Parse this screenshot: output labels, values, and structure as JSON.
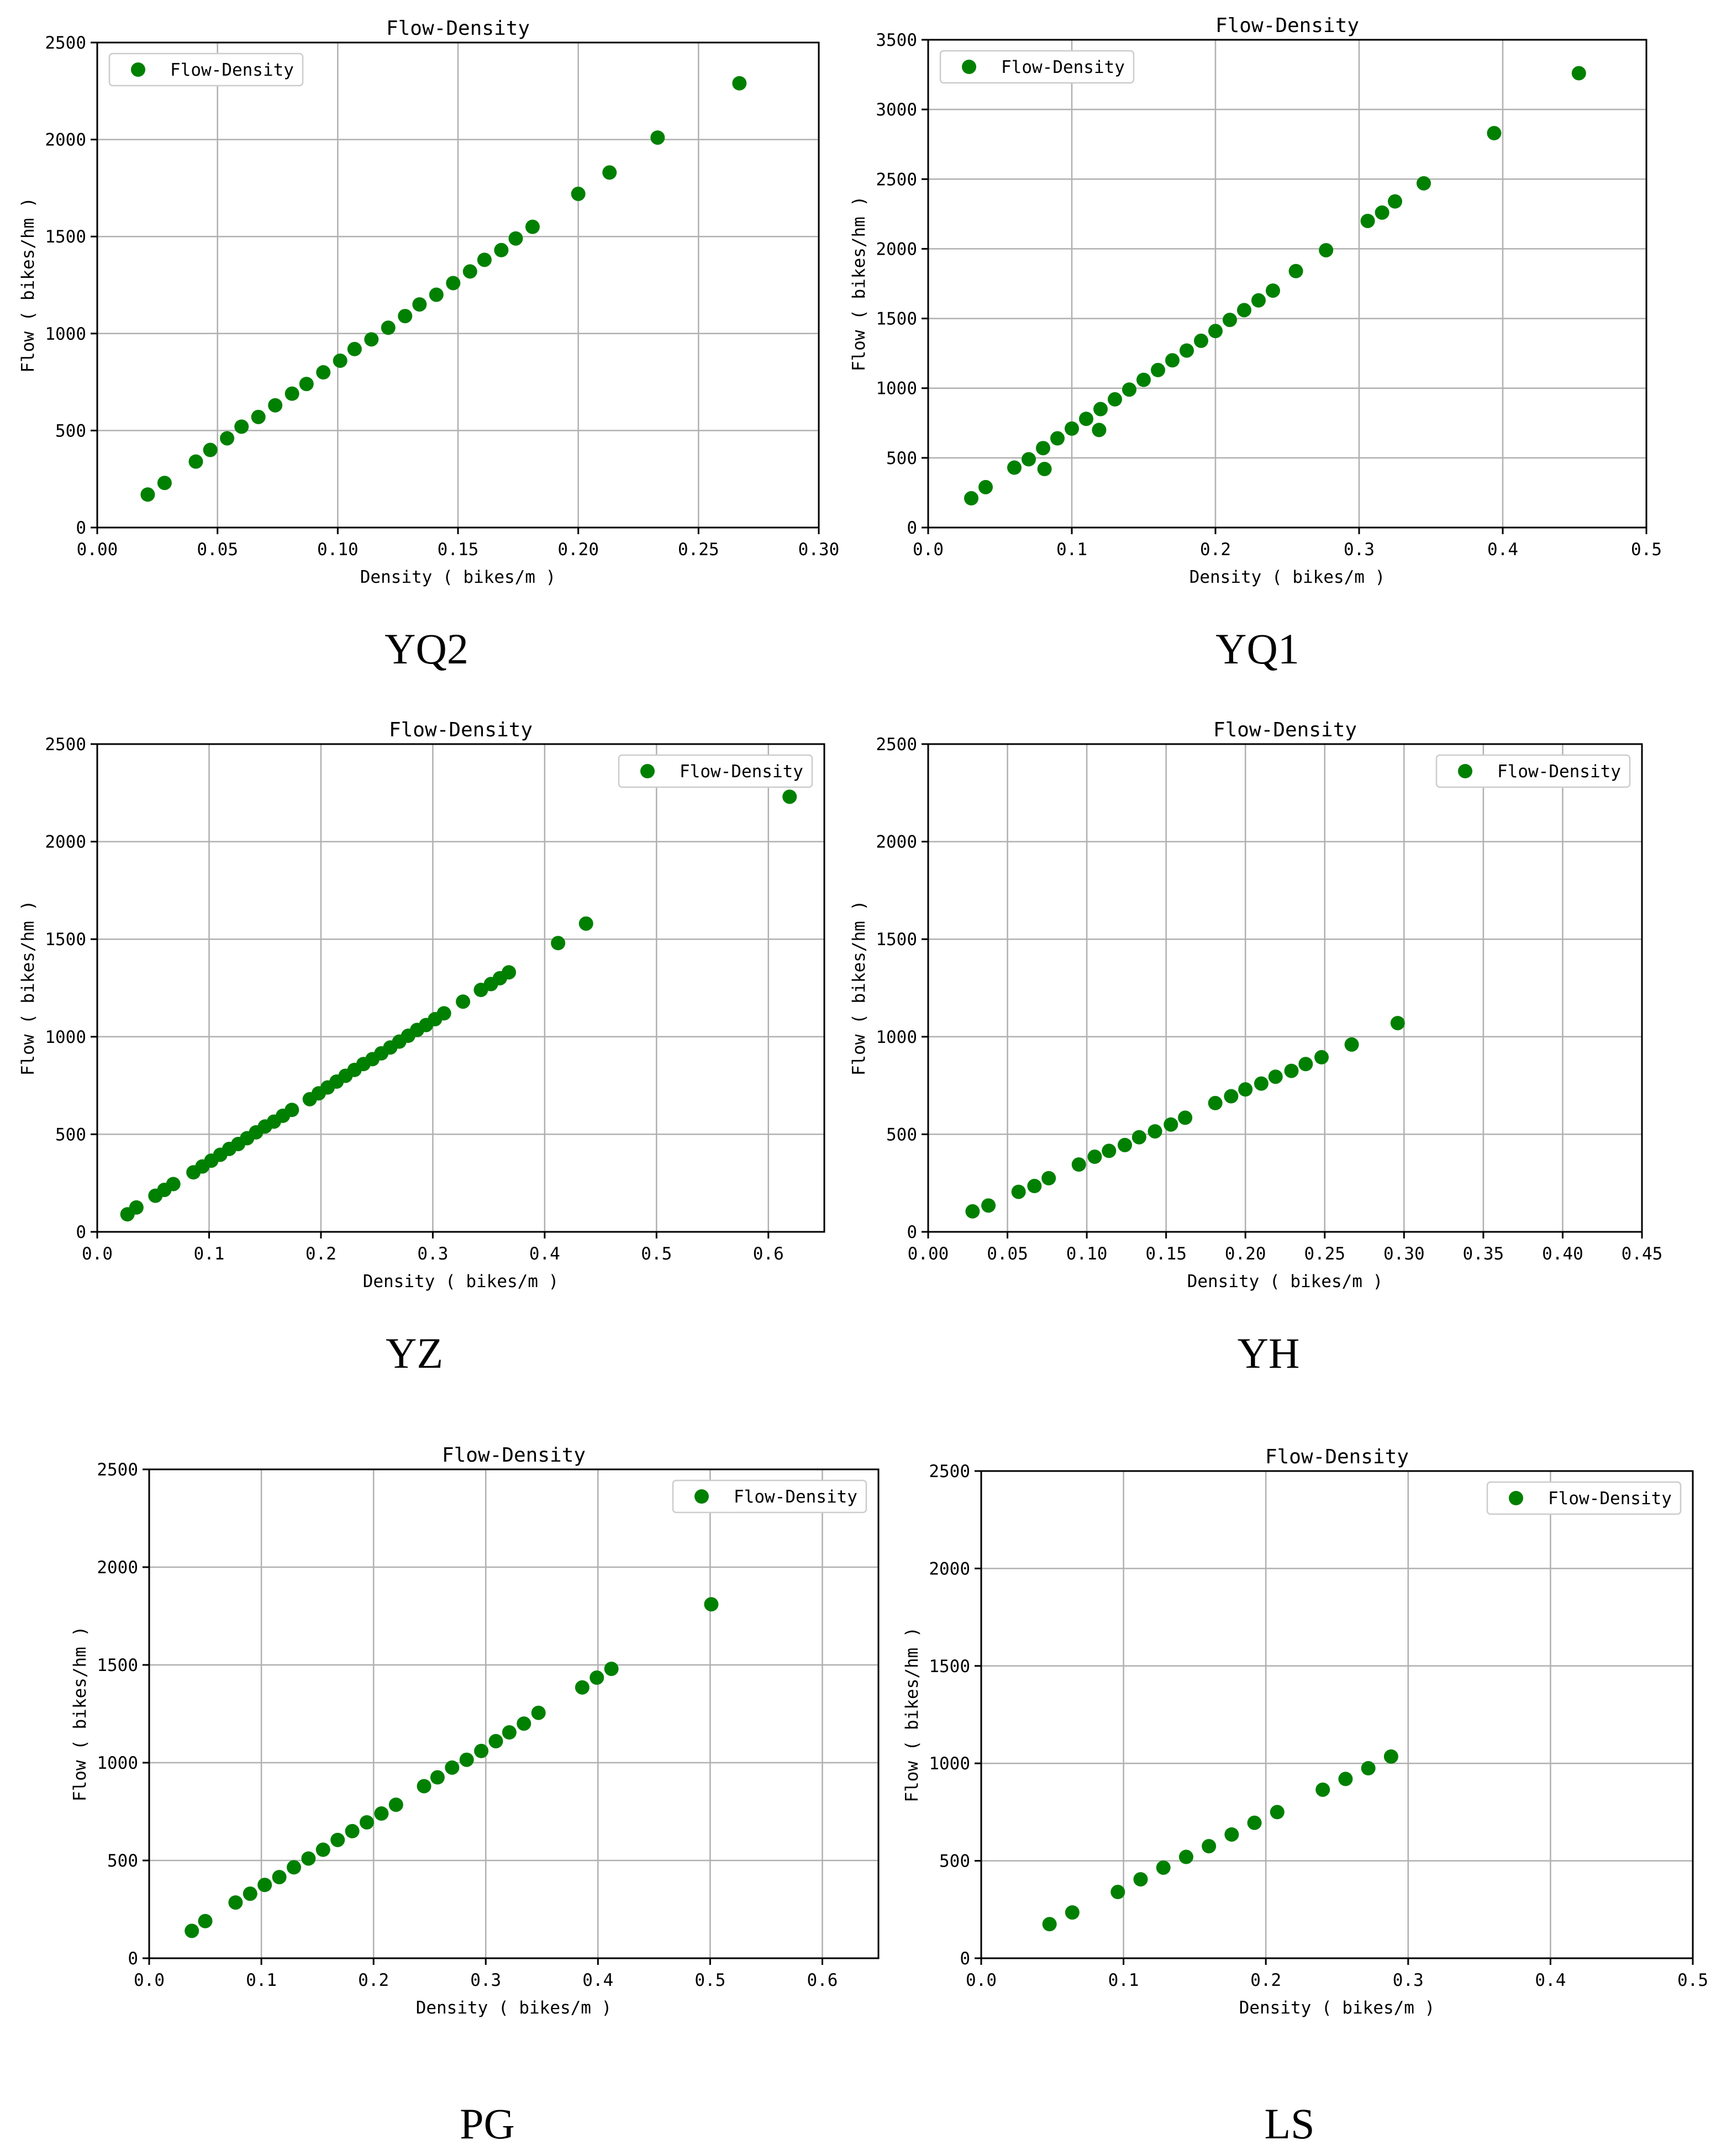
{
  "colors": {
    "marker": "#008000",
    "grid": "#b0b0b0",
    "axis": "#000000"
  },
  "chart_data": [
    {
      "type": "scatter",
      "caption": "YQ2",
      "title": "Flow-Density",
      "xlabel": "Density ( bikes/m )",
      "ylabel": "Flow ( bikes/hm )",
      "xlim": [
        0,
        0.3
      ],
      "ylim": [
        0,
        2500
      ],
      "xticks": [
        0,
        0.05,
        0.1,
        0.15,
        0.2,
        0.25,
        0.3
      ],
      "xtick_labels": [
        "0.00",
        "0.05",
        "0.10",
        "0.15",
        "0.20",
        "0.25",
        "0.30"
      ],
      "yticks": [
        0,
        500,
        1000,
        1500,
        2000,
        2500
      ],
      "ytick_labels": [
        "0",
        "500",
        "1000",
        "1500",
        "2000",
        "2500"
      ],
      "grid": true,
      "legend_position": "upper-left",
      "series": [
        {
          "name": "Flow-Density",
          "x": [
            0.021,
            0.028,
            0.041,
            0.047,
            0.054,
            0.06,
            0.067,
            0.074,
            0.081,
            0.087,
            0.094,
            0.101,
            0.107,
            0.114,
            0.121,
            0.128,
            0.134,
            0.141,
            0.148,
            0.155,
            0.161,
            0.168,
            0.174,
            0.181,
            0.2,
            0.213,
            0.233,
            0.267
          ],
          "y": [
            170,
            230,
            340,
            400,
            460,
            520,
            570,
            630,
            690,
            740,
            800,
            860,
            920,
            970,
            1030,
            1090,
            1150,
            1200,
            1260,
            1320,
            1380,
            1430,
            1490,
            1550,
            1720,
            1830,
            2010,
            2290
          ]
        }
      ]
    },
    {
      "type": "scatter",
      "caption": "YQ1",
      "title": "Flow-Density",
      "xlabel": "Density ( bikes/m )",
      "ylabel": "Flow ( bikes/hm )",
      "xlim": [
        0,
        0.5
      ],
      "ylim": [
        0,
        3500
      ],
      "xticks": [
        0,
        0.1,
        0.2,
        0.3,
        0.4,
        0.5
      ],
      "xtick_labels": [
        "0.0",
        "0.1",
        "0.2",
        "0.3",
        "0.4",
        "0.5"
      ],
      "yticks": [
        0,
        500,
        1000,
        1500,
        2000,
        2500,
        3000,
        3500
      ],
      "ytick_labels": [
        "0",
        "500",
        "1000",
        "1500",
        "2000",
        "2500",
        "3000",
        "3500"
      ],
      "grid": true,
      "legend_position": "upper-left",
      "series": [
        {
          "name": "Flow-Density",
          "x": [
            0.03,
            0.04,
            0.06,
            0.07,
            0.08,
            0.081,
            0.09,
            0.1,
            0.11,
            0.119,
            0.12,
            0.13,
            0.14,
            0.15,
            0.16,
            0.17,
            0.18,
            0.19,
            0.2,
            0.21,
            0.22,
            0.23,
            0.24,
            0.256,
            0.277,
            0.306,
            0.316,
            0.325,
            0.345,
            0.394,
            0.453
          ],
          "y": [
            210,
            290,
            430,
            490,
            570,
            420,
            640,
            710,
            780,
            700,
            850,
            920,
            990,
            1060,
            1130,
            1200,
            1270,
            1340,
            1410,
            1490,
            1560,
            1630,
            1700,
            1840,
            1990,
            2200,
            2260,
            2340,
            2470,
            2830,
            3260
          ]
        }
      ]
    },
    {
      "type": "scatter",
      "caption": "YZ",
      "title": "Flow-Density",
      "xlabel": "Density ( bikes/m )",
      "ylabel": "Flow ( bikes/hm )",
      "xlim": [
        0,
        0.65
      ],
      "ylim": [
        0,
        2500
      ],
      "xticks": [
        0,
        0.1,
        0.2,
        0.3,
        0.4,
        0.5,
        0.6
      ],
      "xtick_labels": [
        "0.0",
        "0.1",
        "0.2",
        "0.3",
        "0.4",
        "0.5",
        "0.6"
      ],
      "yticks": [
        0,
        500,
        1000,
        1500,
        2000,
        2500
      ],
      "ytick_labels": [
        "0",
        "500",
        "1000",
        "1500",
        "2000",
        "2500"
      ],
      "grid": true,
      "legend_position": "upper-right",
      "series": [
        {
          "name": "Flow-Density",
          "x": [
            0.027,
            0.035,
            0.052,
            0.06,
            0.068,
            0.086,
            0.094,
            0.102,
            0.11,
            0.118,
            0.126,
            0.134,
            0.142,
            0.15,
            0.158,
            0.166,
            0.174,
            0.19,
            0.198,
            0.206,
            0.214,
            0.222,
            0.23,
            0.238,
            0.246,
            0.254,
            0.262,
            0.27,
            0.278,
            0.286,
            0.294,
            0.302,
            0.31,
            0.327,
            0.343,
            0.352,
            0.36,
            0.368,
            0.412,
            0.437,
            0.619
          ],
          "y": [
            90,
            125,
            185,
            215,
            245,
            305,
            335,
            365,
            395,
            425,
            450,
            480,
            510,
            540,
            565,
            595,
            625,
            680,
            710,
            740,
            770,
            800,
            830,
            860,
            885,
            915,
            945,
            975,
            1005,
            1035,
            1060,
            1090,
            1120,
            1180,
            1240,
            1270,
            1300,
            1330,
            1480,
            1580,
            2230
          ]
        }
      ]
    },
    {
      "type": "scatter",
      "caption": "YH",
      "title": "Flow-Density",
      "xlabel": "Density ( bikes/m )",
      "ylabel": "Flow ( bikes/hm )",
      "xlim": [
        0,
        0.45
      ],
      "ylim": [
        0,
        2500
      ],
      "xticks": [
        0,
        0.05,
        0.1,
        0.15,
        0.2,
        0.25,
        0.3,
        0.35,
        0.4,
        0.45
      ],
      "xtick_labels": [
        "0.00",
        "0.05",
        "0.10",
        "0.15",
        "0.20",
        "0.25",
        "0.30",
        "0.35",
        "0.40",
        "0.45"
      ],
      "yticks": [
        0,
        500,
        1000,
        1500,
        2000,
        2500
      ],
      "ytick_labels": [
        "0",
        "500",
        "1000",
        "1500",
        "2000",
        "2500"
      ],
      "grid": true,
      "legend_position": "upper-right",
      "series": [
        {
          "name": "Flow-Density",
          "x": [
            0.028,
            0.038,
            0.057,
            0.067,
            0.076,
            0.095,
            0.105,
            0.114,
            0.124,
            0.133,
            0.143,
            0.153,
            0.162,
            0.181,
            0.191,
            0.2,
            0.21,
            0.219,
            0.229,
            0.238,
            0.248,
            0.267,
            0.296
          ],
          "y": [
            105,
            135,
            205,
            235,
            275,
            345,
            385,
            415,
            445,
            485,
            515,
            550,
            585,
            660,
            695,
            730,
            760,
            795,
            825,
            860,
            895,
            960,
            1070
          ]
        }
      ]
    },
    {
      "type": "scatter",
      "caption": "PG",
      "title": "Flow-Density",
      "xlabel": "Density ( bikes/m )",
      "ylabel": "Flow ( bikes/hm )",
      "xlim": [
        0,
        0.65
      ],
      "ylim": [
        0,
        2500
      ],
      "xticks": [
        0,
        0.1,
        0.2,
        0.3,
        0.4,
        0.5,
        0.6
      ],
      "xtick_labels": [
        "0.0",
        "0.1",
        "0.2",
        "0.3",
        "0.4",
        "0.5",
        "0.6"
      ],
      "yticks": [
        0,
        500,
        1000,
        1500,
        2000,
        2500
      ],
      "ytick_labels": [
        "0",
        "500",
        "1000",
        "1500",
        "2000",
        "2500"
      ],
      "grid": true,
      "legend_position": "upper-right",
      "series": [
        {
          "name": "Flow-Density",
          "x": [
            0.038,
            0.05,
            0.077,
            0.09,
            0.103,
            0.116,
            0.129,
            0.142,
            0.155,
            0.168,
            0.181,
            0.194,
            0.207,
            0.22,
            0.245,
            0.257,
            0.27,
            0.283,
            0.296,
            0.309,
            0.321,
            0.334,
            0.347,
            0.386,
            0.399,
            0.412,
            0.501
          ],
          "y": [
            140,
            190,
            285,
            330,
            375,
            415,
            465,
            510,
            555,
            605,
            650,
            695,
            740,
            785,
            880,
            925,
            975,
            1015,
            1060,
            1110,
            1155,
            1200,
            1255,
            1385,
            1435,
            1480,
            1810
          ]
        }
      ]
    },
    {
      "type": "scatter",
      "caption": "LS",
      "title": "Flow-Density",
      "xlabel": "Density ( bikes/m )",
      "ylabel": "Flow ( bikes/hm )",
      "xlim": [
        0,
        0.5
      ],
      "ylim": [
        0,
        2500
      ],
      "xticks": [
        0,
        0.1,
        0.2,
        0.3,
        0.4,
        0.5
      ],
      "xtick_labels": [
        "0.0",
        "0.1",
        "0.2",
        "0.3",
        "0.4",
        "0.5"
      ],
      "yticks": [
        0,
        500,
        1000,
        1500,
        2000,
        2500
      ],
      "ytick_labels": [
        "0",
        "500",
        "1000",
        "1500",
        "2000",
        "2500"
      ],
      "grid": true,
      "legend_position": "upper-right",
      "series": [
        {
          "name": "Flow-Density",
          "x": [
            0.048,
            0.064,
            0.096,
            0.112,
            0.128,
            0.144,
            0.16,
            0.176,
            0.192,
            0.208,
            0.24,
            0.256,
            0.272,
            0.288
          ],
          "y": [
            175,
            235,
            340,
            405,
            465,
            520,
            575,
            635,
            695,
            750,
            865,
            920,
            975,
            1035
          ]
        }
      ]
    }
  ]
}
